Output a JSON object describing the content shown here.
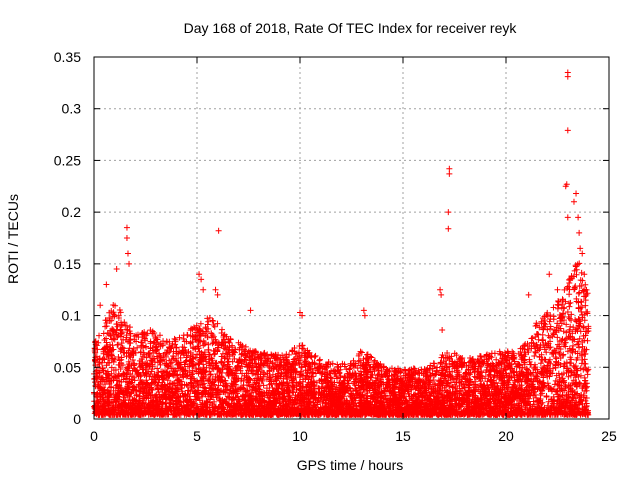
{
  "chart_data": {
    "type": "scatter",
    "title": "Day 168 of 2018, Rate Of TEC Index for receiver reyk",
    "xlabel": "GPS time / hours",
    "ylabel": "ROTI / TECUs",
    "xlim": [
      0,
      25
    ],
    "ylim": [
      0,
      0.35
    ],
    "x_ticks": [
      0,
      5,
      10,
      15,
      20,
      25
    ],
    "x_tick_labels": [
      "0",
      "5",
      "10",
      "15",
      "20",
      "25"
    ],
    "y_ticks": [
      0,
      0.05,
      0.1,
      0.15,
      0.2,
      0.25,
      0.3,
      0.35
    ],
    "y_tick_labels": [
      "0",
      "0.05",
      "0.1",
      "0.15",
      "0.2",
      "0.25",
      "0.3",
      "0.35"
    ],
    "grid": true,
    "marker": "+",
    "marker_color": "#ff0000",
    "series": [
      {
        "name": "ROTI",
        "envelope": {
          "hours": [
            0,
            0.5,
            1.0,
            1.5,
            2.0,
            2.5,
            3.0,
            3.5,
            4.0,
            4.5,
            5.0,
            5.5,
            6.0,
            6.5,
            7.0,
            7.5,
            8.0,
            8.5,
            9.0,
            9.5,
            10.0,
            10.5,
            11.0,
            11.5,
            12.0,
            12.5,
            13.0,
            13.5,
            14.0,
            14.5,
            15.0,
            15.5,
            16.0,
            16.5,
            17.0,
            17.5,
            18.0,
            18.5,
            19.0,
            19.5,
            20.0,
            20.5,
            21.0,
            21.5,
            22.0,
            22.5,
            23.0,
            23.5,
            24.0
          ],
          "typical_max": [
            0.07,
            0.09,
            0.11,
            0.095,
            0.08,
            0.085,
            0.08,
            0.075,
            0.075,
            0.08,
            0.09,
            0.095,
            0.09,
            0.075,
            0.07,
            0.065,
            0.06,
            0.06,
            0.058,
            0.06,
            0.07,
            0.06,
            0.055,
            0.05,
            0.05,
            0.05,
            0.065,
            0.055,
            0.048,
            0.045,
            0.045,
            0.045,
            0.045,
            0.05,
            0.06,
            0.06,
            0.055,
            0.055,
            0.06,
            0.06,
            0.065,
            0.06,
            0.07,
            0.09,
            0.1,
            0.11,
            0.13,
            0.15,
            0.12
          ]
        },
        "spikes": [
          {
            "x": 0.3,
            "y": 0.11
          },
          {
            "x": 0.6,
            "y": 0.13
          },
          {
            "x": 1.1,
            "y": 0.145
          },
          {
            "x": 1.6,
            "y": 0.185
          },
          {
            "x": 1.6,
            "y": 0.175
          },
          {
            "x": 1.65,
            "y": 0.16
          },
          {
            "x": 1.7,
            "y": 0.15
          },
          {
            "x": 5.1,
            "y": 0.14
          },
          {
            "x": 5.2,
            "y": 0.135
          },
          {
            "x": 5.3,
            "y": 0.125
          },
          {
            "x": 5.9,
            "y": 0.125
          },
          {
            "x": 6.0,
            "y": 0.12
          },
          {
            "x": 6.05,
            "y": 0.182
          },
          {
            "x": 7.6,
            "y": 0.105
          },
          {
            "x": 10.0,
            "y": 0.103
          },
          {
            "x": 10.1,
            "y": 0.1
          },
          {
            "x": 13.1,
            "y": 0.105
          },
          {
            "x": 13.15,
            "y": 0.1
          },
          {
            "x": 16.8,
            "y": 0.125
          },
          {
            "x": 16.85,
            "y": 0.12
          },
          {
            "x": 16.9,
            "y": 0.086
          },
          {
            "x": 17.2,
            "y": 0.2
          },
          {
            "x": 17.25,
            "y": 0.242
          },
          {
            "x": 17.25,
            "y": 0.237
          },
          {
            "x": 17.2,
            "y": 0.184
          },
          {
            "x": 21.1,
            "y": 0.12
          },
          {
            "x": 22.1,
            "y": 0.14
          },
          {
            "x": 22.5,
            "y": 0.125
          },
          {
            "x": 22.9,
            "y": 0.225
          },
          {
            "x": 22.95,
            "y": 0.227
          },
          {
            "x": 23.0,
            "y": 0.279
          },
          {
            "x": 23.0,
            "y": 0.335
          },
          {
            "x": 23.0,
            "y": 0.331
          },
          {
            "x": 23.0,
            "y": 0.195
          },
          {
            "x": 23.3,
            "y": 0.21
          },
          {
            "x": 23.4,
            "y": 0.218
          },
          {
            "x": 23.5,
            "y": 0.195
          },
          {
            "x": 23.55,
            "y": 0.18
          },
          {
            "x": 23.6,
            "y": 0.165
          },
          {
            "x": 23.7,
            "y": 0.16
          },
          {
            "x": 23.8,
            "y": 0.14
          },
          {
            "x": 23.9,
            "y": 0.12
          }
        ]
      }
    ]
  }
}
